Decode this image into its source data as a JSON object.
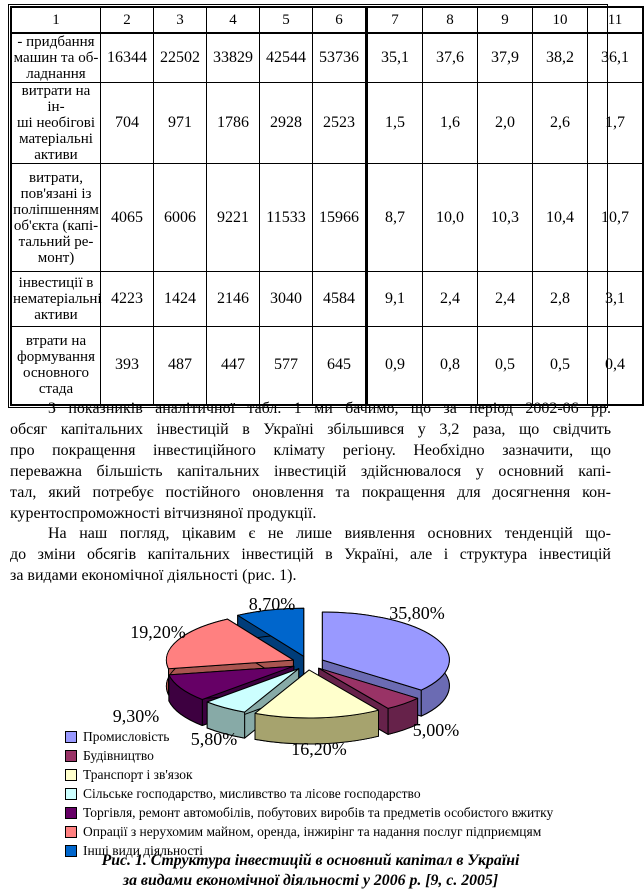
{
  "table": {
    "header": [
      "1",
      "2",
      "3",
      "4",
      "5",
      "6",
      "7",
      "8",
      "9",
      "10",
      "11"
    ],
    "rows": [
      {
        "label": "- придбання\nмашин та об-\nладнання",
        "values": [
          "16344",
          "22502",
          "33829",
          "42544",
          "53736",
          "35,1",
          "37,6",
          "37,9",
          "38,2",
          "36,1"
        ]
      },
      {
        "label": "витрати на ін-\nші необігові\nматеріальні\nактиви",
        "values": [
          "704",
          "971",
          "1786",
          "2928",
          "2523",
          "1,5",
          "1,6",
          "2,0",
          "2,6",
          "1,7"
        ]
      },
      {
        "label": "витрати,\nпов'язані із\nполіпшенням\nоб'єкта (капі-\nтальний ре-\nмонт)",
        "values": [
          "4065",
          "6006",
          "9221",
          "11533",
          "15966",
          "8,7",
          "10,0",
          "10,3",
          "10,4",
          "10,7"
        ]
      },
      {
        "label": "інвестиції в\nнематеріальні\nактиви",
        "values": [
          "4223",
          "1424",
          "2146",
          "3040",
          "4584",
          "9,1",
          "2,4",
          "2,4",
          "2,8",
          "3,1"
        ]
      },
      {
        "label": "втрати на\nформування\nосновного\nстада",
        "values": [
          "393",
          "487",
          "447",
          "577",
          "645",
          "0,9",
          "0,8",
          "0,5",
          "0,5",
          "0,4"
        ]
      }
    ]
  },
  "paragraphs": [
    {
      "lines": [
        "З показників аналітичної табл. 1 ми бачимо, що за період 2002-06 рр.",
        "обсяг капітальних інвестицій в Україні збільшився у 3,2 раза, що свідчить",
        "про покращення інвестиційного клімату регіону. Необхідно зазначити, що",
        "переважна більшість капітальних інвестицій здійснювалося у основний капі-",
        "тал, який потребує постійного оновлення та покращення для досягнення кон-",
        "курентоспроможності вітчизняної продукції."
      ]
    },
    {
      "lines": [
        "На наш погляд, цікавим є не лише виявлення основних тенденцій що-",
        "до зміни обсягів капітальних інвестицій в Україні, але і структура інвестицій",
        "за видами економічної діяльності (рис. 1)."
      ]
    }
  ],
  "chart_data": {
    "type": "pie",
    "style": "3d-exploded",
    "unit": "%",
    "legend_position": "bottom-left",
    "slices": [
      {
        "label": "Промисловість",
        "value": 35.8,
        "display": "35,80%",
        "color": "#9999FF",
        "side_color": "#6B6BB3",
        "label_x": 417,
        "label_y": 25
      },
      {
        "label": "Будівництво",
        "value": 5.0,
        "display": "5,00%",
        "color": "#993366",
        "side_color": "#66224A",
        "label_x": 436,
        "label_y": 142
      },
      {
        "label": "Транспорт і зв'язок",
        "value": 16.2,
        "display": "16,20%",
        "color": "#FFFFCC",
        "side_color": "#A6A36E",
        "label_x": 319,
        "label_y": 161
      },
      {
        "label": "Сільське господарство, мисливство та лісове господарство",
        "value": 5.8,
        "display": "5,80%",
        "color": "#CCFFFF",
        "side_color": "#87AAA7",
        "label_x": 214,
        "label_y": 151
      },
      {
        "label": "Торгівля, ремонт автомобілів, побутових виробів та предметів особистого вжитку",
        "value": 9.3,
        "display": "9,30%",
        "color": "#660066",
        "side_color": "#3D0040",
        "label_x": 136,
        "label_y": 128
      },
      {
        "label": "Опрації з нерухомим майном, оренда, інжирінг та надання послуг підприємцям",
        "value": 19.2,
        "display": "19,20%",
        "color": "#FF8080",
        "side_color": "#AA5550",
        "label_x": 158,
        "label_y": 44
      },
      {
        "label": "Інші види діяльності",
        "value": 8.7,
        "display": "8,70%",
        "color": "#0066CC",
        "side_color": "#003D7A",
        "label_x": 272,
        "label_y": 16
      }
    ]
  },
  "caption": {
    "line1": "Рис. 1. Структура інвестицій в основний капітал в Україні",
    "line2": "за видами економічної діяльності у 2006 р. [9, с. 2005]"
  }
}
